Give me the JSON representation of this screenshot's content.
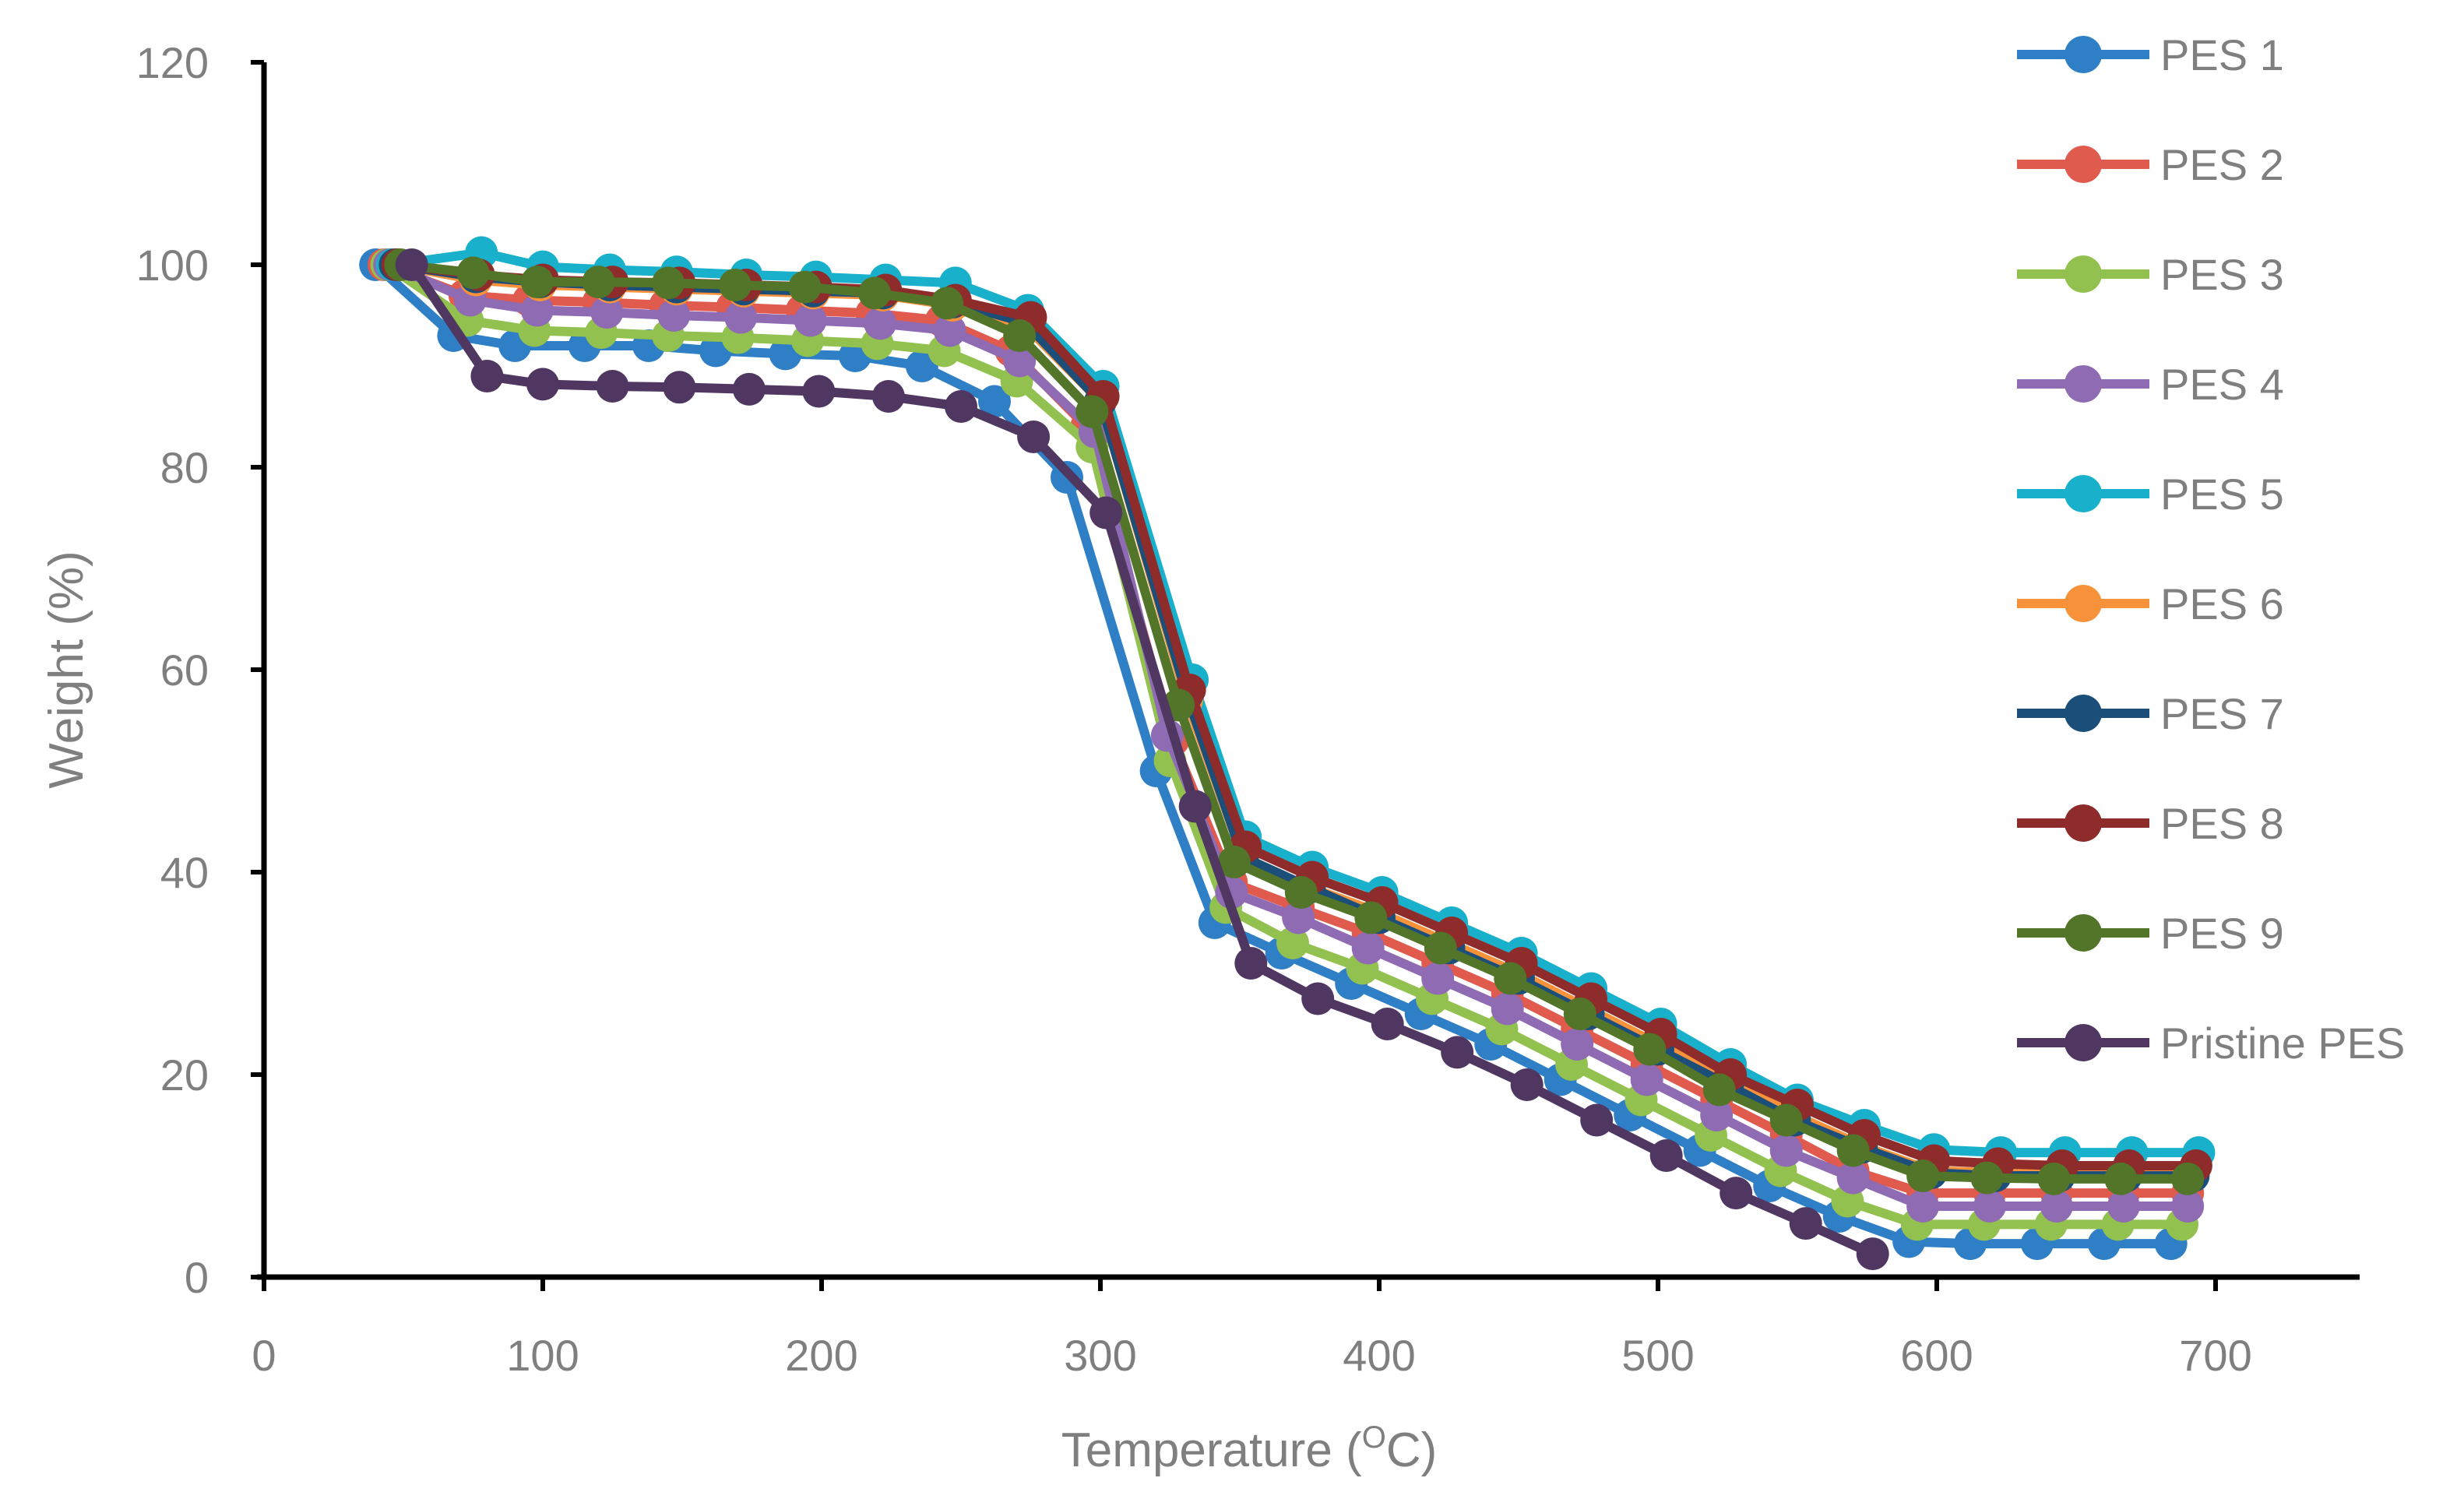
{
  "chart_data": {
    "type": "line",
    "title": "",
    "xlabel": "Temperature (",
    "xlabel_sup": "O",
    "xlabel_unit": "C)",
    "ylabel": "Weight (%)",
    "xlim": [
      0,
      750
    ],
    "ylim": [
      0,
      120
    ],
    "xticks": [
      "0",
      "100",
      "200",
      "300",
      "400",
      "500",
      "600",
      "700"
    ],
    "xtick_values": [
      0,
      100,
      200,
      300,
      400,
      500,
      600,
      700
    ],
    "yticks": [
      "0",
      "20",
      "40",
      "60",
      "80",
      "100",
      "120"
    ],
    "ytick_values": [
      0,
      20,
      40,
      60,
      80,
      100,
      120
    ],
    "grid": false,
    "legend_position": "right",
    "series": [
      {
        "name": "PES 1",
        "color": "#2e7fc6",
        "points": [
          [
            40,
            100
          ],
          [
            68,
            93
          ],
          [
            90,
            92
          ],
          [
            115,
            92
          ],
          [
            138,
            92
          ],
          [
            162,
            91.5
          ],
          [
            187,
            91.2
          ],
          [
            212,
            91
          ],
          [
            236,
            90
          ],
          [
            262,
            86.5
          ],
          [
            288,
            79
          ],
          [
            320,
            50
          ],
          [
            341,
            35
          ],
          [
            365,
            32
          ],
          [
            390,
            29
          ],
          [
            415,
            26
          ],
          [
            440,
            23
          ],
          [
            465,
            19.5
          ],
          [
            490,
            16
          ],
          [
            515,
            12.5
          ],
          [
            540,
            9
          ],
          [
            565,
            6
          ],
          [
            590,
            3.5
          ],
          [
            612,
            3.3
          ],
          [
            636,
            3.3
          ],
          [
            660,
            3.3
          ],
          [
            684,
            3.3
          ]
        ]
      },
      {
        "name": "PES 2",
        "color": "#e05a4e",
        "points": [
          [
            43,
            100
          ],
          [
            72,
            97
          ],
          [
            95,
            96.5
          ],
          [
            120,
            96.3
          ],
          [
            144,
            96
          ],
          [
            168,
            95.8
          ],
          [
            193,
            95.5
          ],
          [
            218,
            95.2
          ],
          [
            243,
            94.5
          ],
          [
            268,
            91.5
          ],
          [
            295,
            84
          ],
          [
            326,
            53
          ],
          [
            347,
            39
          ],
          [
            371,
            36.5
          ],
          [
            396,
            34
          ],
          [
            421,
            31
          ],
          [
            446,
            28
          ],
          [
            471,
            24.5
          ],
          [
            496,
            21
          ],
          [
            521,
            17.5
          ],
          [
            546,
            14
          ],
          [
            570,
            10.5
          ],
          [
            595,
            8.3
          ],
          [
            619,
            8.3
          ],
          [
            643,
            8.3
          ],
          [
            667,
            8.3
          ],
          [
            690,
            8.3
          ]
        ]
      },
      {
        "name": "PES 3",
        "color": "#92c150",
        "points": [
          [
            44,
            100
          ],
          [
            73,
            94.5
          ],
          [
            97,
            93.5
          ],
          [
            121,
            93.3
          ],
          [
            145,
            93
          ],
          [
            170,
            92.8
          ],
          [
            195,
            92.5
          ],
          [
            220,
            92.2
          ],
          [
            244,
            91.5
          ],
          [
            270,
            88.5
          ],
          [
            297,
            82
          ],
          [
            325,
            51
          ],
          [
            345,
            36.5
          ],
          [
            369,
            33
          ],
          [
            394,
            30.5
          ],
          [
            419,
            27.5
          ],
          [
            444,
            24.5
          ],
          [
            469,
            21
          ],
          [
            494,
            17.5
          ],
          [
            519,
            14
          ],
          [
            544,
            10.5
          ],
          [
            568,
            7.5
          ],
          [
            593,
            5.2
          ],
          [
            617,
            5.2
          ],
          [
            641,
            5.2
          ],
          [
            665,
            5.2
          ],
          [
            688,
            5.2
          ]
        ]
      },
      {
        "name": "PES 4",
        "color": "#8e6bb2",
        "points": [
          [
            45,
            100
          ],
          [
            74,
            96.5
          ],
          [
            98,
            95.5
          ],
          [
            123,
            95.3
          ],
          [
            147,
            95
          ],
          [
            171,
            94.8
          ],
          [
            196,
            94.5
          ],
          [
            221,
            94.2
          ],
          [
            246,
            93.5
          ],
          [
            271,
            90.5
          ],
          [
            298,
            83.5
          ],
          [
            324,
            53.5
          ],
          [
            347,
            38
          ],
          [
            371,
            35.5
          ],
          [
            396,
            32.5
          ],
          [
            421,
            29.5
          ],
          [
            446,
            26.5
          ],
          [
            471,
            23
          ],
          [
            496,
            19.5
          ],
          [
            521,
            16
          ],
          [
            546,
            12.5
          ],
          [
            570,
            9.8
          ],
          [
            595,
            7
          ],
          [
            619,
            7
          ],
          [
            643,
            7
          ],
          [
            667,
            7
          ],
          [
            690,
            7
          ]
        ]
      },
      {
        "name": "PES 5",
        "color": "#19b0cc",
        "points": [
          [
            46,
            100
          ],
          [
            78,
            101.2
          ],
          [
            100,
            99.8
          ],
          [
            124,
            99.5
          ],
          [
            148,
            99.3
          ],
          [
            173,
            99
          ],
          [
            198,
            98.8
          ],
          [
            223,
            98.5
          ],
          [
            248,
            98.2
          ],
          [
            274,
            95.5
          ],
          [
            301,
            88
          ],
          [
            333,
            59
          ],
          [
            352,
            43.5
          ],
          [
            376,
            40.5
          ],
          [
            401,
            38
          ],
          [
            426,
            35
          ],
          [
            451,
            32
          ],
          [
            476,
            28.5
          ],
          [
            501,
            25
          ],
          [
            526,
            21
          ],
          [
            550,
            17.5
          ],
          [
            574,
            15
          ],
          [
            599,
            12.6
          ],
          [
            623,
            12.3
          ],
          [
            646,
            12.3
          ],
          [
            670,
            12.3
          ],
          [
            694,
            12.3
          ]
        ]
      },
      {
        "name": "PES 6",
        "color": "#f7923a",
        "points": [
          [
            47,
            100
          ],
          [
            76,
            98.5
          ],
          [
            99,
            98
          ],
          [
            124,
            97.8
          ],
          [
            148,
            97.6
          ],
          [
            172,
            97.4
          ],
          [
            197,
            97.2
          ],
          [
            222,
            97
          ],
          [
            247,
            96
          ],
          [
            273,
            94
          ],
          [
            300,
            86.5
          ],
          [
            331,
            57
          ],
          [
            351,
            41.5
          ],
          [
            375,
            38.5
          ],
          [
            400,
            36
          ],
          [
            425,
            33
          ],
          [
            450,
            30
          ],
          [
            475,
            26.5
          ],
          [
            500,
            23
          ],
          [
            525,
            19.5
          ],
          [
            549,
            16
          ],
          [
            573,
            13
          ],
          [
            598,
            10.5
          ],
          [
            621,
            10.3
          ],
          [
            644,
            10.3
          ],
          [
            668,
            10.3
          ],
          [
            692,
            10.3
          ]
        ]
      },
      {
        "name": "PES 7",
        "color": "#1c4e7a",
        "points": [
          [
            47,
            100
          ],
          [
            76,
            98.8
          ],
          [
            99,
            98.3
          ],
          [
            124,
            98
          ],
          [
            148,
            97.8
          ],
          [
            172,
            97.6
          ],
          [
            197,
            97.4
          ],
          [
            222,
            97.2
          ],
          [
            247,
            96.3
          ],
          [
            273,
            94.3
          ],
          [
            300,
            86.5
          ],
          [
            331,
            57.5
          ],
          [
            351,
            41.5
          ],
          [
            375,
            38.5
          ],
          [
            400,
            35.5
          ],
          [
            425,
            32.5
          ],
          [
            450,
            29.5
          ],
          [
            475,
            26
          ],
          [
            500,
            22.5
          ],
          [
            525,
            19
          ],
          [
            549,
            15.5
          ],
          [
            573,
            12.8
          ],
          [
            598,
            10.3
          ],
          [
            621,
            10
          ],
          [
            644,
            10
          ],
          [
            668,
            10
          ],
          [
            692,
            10
          ]
        ]
      },
      {
        "name": "PES 8",
        "color": "#8e2b2b",
        "points": [
          [
            48,
            100
          ],
          [
            77,
            99
          ],
          [
            100,
            98.5
          ],
          [
            125,
            98.3
          ],
          [
            149,
            98.2
          ],
          [
            173,
            98
          ],
          [
            198,
            97.8
          ],
          [
            223,
            97.5
          ],
          [
            248,
            96.5
          ],
          [
            275,
            94.8
          ],
          [
            301,
            87
          ],
          [
            332,
            58
          ],
          [
            352,
            42.5
          ],
          [
            376,
            39.5
          ],
          [
            401,
            37
          ],
          [
            426,
            34
          ],
          [
            451,
            31
          ],
          [
            476,
            27.5
          ],
          [
            501,
            24
          ],
          [
            526,
            20
          ],
          [
            550,
            17
          ],
          [
            574,
            14
          ],
          [
            599,
            11.5
          ],
          [
            622,
            11.2
          ],
          [
            645,
            11
          ],
          [
            669,
            11
          ],
          [
            693,
            11
          ]
        ]
      },
      {
        "name": "PES 9",
        "color": "#52752a",
        "points": [
          [
            49,
            100
          ],
          [
            75,
            99.2
          ],
          [
            98,
            98.3
          ],
          [
            120,
            98.3
          ],
          [
            145,
            98.2
          ],
          [
            169,
            98
          ],
          [
            194,
            97.8
          ],
          [
            219,
            97.2
          ],
          [
            245,
            96.2
          ],
          [
            271,
            93
          ],
          [
            297,
            85.5
          ],
          [
            328,
            56.5
          ],
          [
            348,
            41
          ],
          [
            372,
            38
          ],
          [
            397,
            35.5
          ],
          [
            422,
            32.5
          ],
          [
            447,
            29.5
          ],
          [
            472,
            26
          ],
          [
            497,
            22.5
          ],
          [
            522,
            18.5
          ],
          [
            546,
            15.5
          ],
          [
            570,
            12.5
          ],
          [
            595,
            10
          ],
          [
            618,
            9.8
          ],
          [
            642,
            9.7
          ],
          [
            666,
            9.7
          ],
          [
            690,
            9.7
          ]
        ]
      },
      {
        "name": "Pristine PES",
        "color": "#4f3762",
        "points": [
          [
            53,
            100
          ],
          [
            80,
            89
          ],
          [
            100,
            88.2
          ],
          [
            125,
            88
          ],
          [
            149,
            87.9
          ],
          [
            174,
            87.7
          ],
          [
            199,
            87.5
          ],
          [
            224,
            87
          ],
          [
            250,
            86
          ],
          [
            276,
            83
          ],
          [
            302,
            75.5
          ],
          [
            334,
            46.5
          ],
          [
            354,
            31
          ],
          [
            378,
            27.5
          ],
          [
            403,
            25
          ],
          [
            428,
            22.2
          ],
          [
            453,
            19
          ],
          [
            478,
            15.5
          ],
          [
            503,
            12
          ],
          [
            528,
            8.3
          ],
          [
            553,
            5.3
          ],
          [
            577,
            2.3
          ]
        ]
      }
    ]
  }
}
